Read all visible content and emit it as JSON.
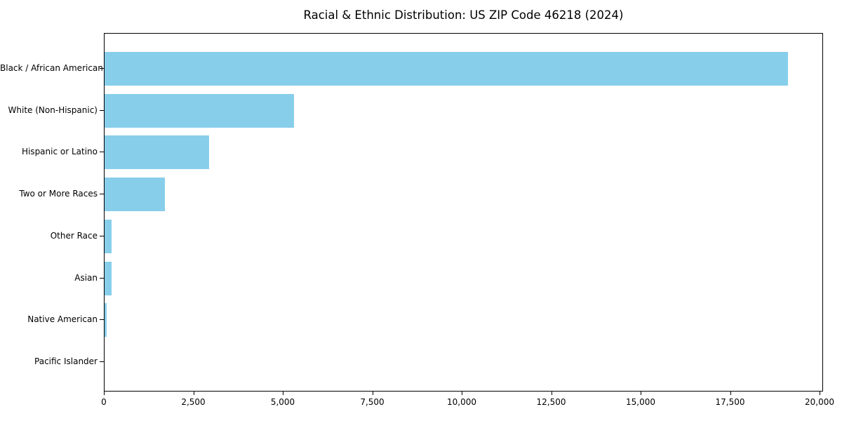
{
  "chart_data": {
    "type": "bar",
    "orientation": "horizontal",
    "title": "Racial & Ethnic Distribution: US ZIP Code 46218 (2024)",
    "categories": [
      "Black / African American",
      "White (Non-Hispanic)",
      "Hispanic or Latino",
      "Two or More Races",
      "Other Race",
      "Asian",
      "Native American",
      "Pacific Islander"
    ],
    "values": [
      19100,
      5300,
      2920,
      1690,
      200,
      195,
      65,
      0
    ],
    "xlabel": "",
    "ylabel": "",
    "xlim": [
      0,
      20000
    ],
    "xticks": [
      0,
      2500,
      5000,
      7500,
      10000,
      12500,
      15000,
      17500,
      20000
    ],
    "xtick_labels": [
      "0",
      "2,500",
      "5,000",
      "7,500",
      "10,000",
      "12,500",
      "15,000",
      "17,500",
      "20,000"
    ],
    "bar_color": "#87CEEB",
    "axis_color": "#000000",
    "text_color": "#000000",
    "background_color": "#ffffff",
    "grid": false,
    "legend": null
  }
}
